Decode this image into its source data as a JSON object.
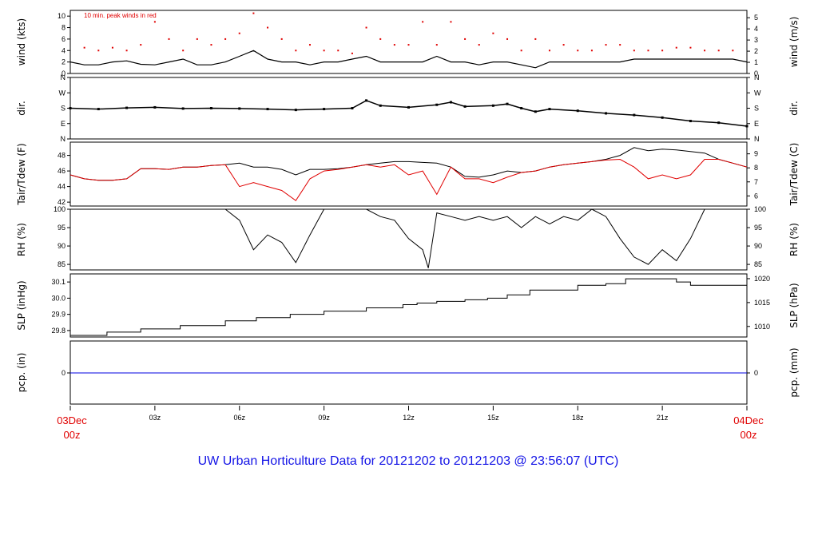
{
  "title": "UW Urban Horticulture Data for 20121202  to  20121203 @ 23:56:07  (UTC)",
  "colors": {
    "primary": "#000000",
    "secondary": "#e00000",
    "precip": "#0000e0",
    "title": "#1414e6"
  },
  "x_axis": {
    "start_label_top": "03Dec",
    "start_label_bottom": "00z",
    "end_label_top": "04Dec",
    "end_label_bottom": "00z",
    "hour_ticks": [
      {
        "hour": 3,
        "label": "03z"
      },
      {
        "hour": 6,
        "label": "06z"
      },
      {
        "hour": 9,
        "label": "09z"
      },
      {
        "hour": 12,
        "label": "12z"
      },
      {
        "hour": 15,
        "label": "15z"
      },
      {
        "hour": 18,
        "label": "18z"
      },
      {
        "hour": 21,
        "label": "21z"
      }
    ]
  },
  "chart_data": [
    {
      "type": "line",
      "panel": "wind",
      "ylabel": "wind (kts)",
      "ylabel_right": "wind (m/s)",
      "annotation": "10 min. peak winds in red",
      "ylim": [
        0,
        11
      ],
      "yticks": [
        0,
        2,
        4,
        6,
        8,
        10
      ],
      "right_ylim": [
        0,
        5.66
      ],
      "right_yticks": [
        0,
        1,
        2,
        3,
        4,
        5
      ],
      "series": [
        {
          "role": "mean",
          "x": [
            0,
            0.5,
            1,
            1.5,
            2,
            2.5,
            3,
            3.5,
            4,
            4.5,
            5,
            5.5,
            6,
            6.5,
            7,
            7.5,
            8,
            8.5,
            9,
            9.5,
            10,
            10.5,
            11,
            11.5,
            12,
            12.5,
            13,
            13.5,
            14,
            14.5,
            15,
            15.5,
            16,
            16.5,
            17,
            17.5,
            18,
            18.5,
            19,
            19.5,
            20,
            20.5,
            21,
            21.5,
            22,
            22.5,
            23,
            23.5,
            24
          ],
          "values": [
            2,
            1.5,
            1.5,
            2,
            2.2,
            1.6,
            1.5,
            2,
            2.5,
            1.5,
            1.5,
            2,
            3,
            4,
            2.5,
            2,
            2,
            1.5,
            2,
            2,
            2.5,
            3,
            2,
            2,
            2,
            2,
            3,
            2,
            2,
            1.5,
            2,
            2,
            1.5,
            1,
            2,
            2,
            2,
            2,
            2,
            2,
            2.5,
            2.5,
            2.5,
            2.5,
            2.5,
            2.5,
            2.5,
            2.5,
            2
          ]
        },
        {
          "role": "peak",
          "x": [
            0.5,
            1,
            1.5,
            2,
            2.5,
            3,
            3.5,
            4,
            4.5,
            5,
            5.5,
            6,
            6.5,
            7,
            7.5,
            8,
            8.5,
            9,
            9.5,
            10,
            10.5,
            11,
            11.5,
            12,
            12.5,
            13,
            13.5,
            14,
            14.5,
            15,
            15.5,
            16,
            16.5,
            17,
            17.5,
            18,
            18.5,
            19,
            19.5,
            20,
            20.5,
            21,
            21.5,
            22,
            22.5,
            23,
            23.5
          ],
          "values": [
            4.5,
            4,
            4.5,
            4,
            5,
            9,
            6,
            4,
            6,
            5,
            6,
            7,
            10.5,
            8,
            6,
            4,
            5,
            4,
            4,
            3.5,
            8,
            6,
            5,
            5,
            9,
            5,
            9,
            6,
            5,
            7,
            6,
            4,
            6,
            4,
            5,
            4,
            4,
            5,
            5,
            4,
            4,
            4,
            4.5,
            4.5,
            4,
            4,
            4
          ]
        }
      ]
    },
    {
      "type": "scatter",
      "panel": "dir",
      "ylabel": "dir.",
      "ylabel_right": "dir.",
      "categories": [
        "N",
        "E",
        "S",
        "W",
        "N"
      ],
      "ylim": [
        0,
        360
      ],
      "yticks": [
        0,
        90,
        180,
        270,
        360
      ],
      "x": [
        0,
        1,
        2,
        3,
        4,
        5,
        6,
        7,
        8,
        9,
        10,
        10.5,
        11,
        12,
        13,
        13.5,
        14,
        15,
        15.5,
        16,
        16.5,
        17,
        18,
        19,
        20,
        21,
        22,
        23,
        24
      ],
      "values": [
        180,
        175,
        182,
        185,
        178,
        180,
        178,
        175,
        170,
        175,
        180,
        225,
        195,
        185,
        200,
        215,
        190,
        195,
        205,
        180,
        160,
        175,
        165,
        150,
        140,
        125,
        105,
        95,
        75
      ]
    },
    {
      "type": "line",
      "panel": "temp",
      "ylabel": "Tair/Tdew (F)",
      "ylabel_right": "Tair/Tdew (C)",
      "ylim": [
        41.5,
        49.7
      ],
      "yticks": [
        42,
        44,
        46,
        48
      ],
      "right_yticks": [
        6,
        7,
        8,
        9
      ],
      "series": [
        {
          "role": "Tair",
          "x": [
            0,
            0.5,
            1,
            1.5,
            2,
            2.5,
            3,
            3.5,
            4,
            4.5,
            5,
            5.5,
            6,
            6.5,
            7,
            7.5,
            8,
            8.5,
            9,
            9.5,
            10,
            10.5,
            11,
            11.5,
            12,
            12.5,
            13,
            13.5,
            14,
            14.5,
            15,
            15.5,
            16,
            16.5,
            17,
            17.5,
            18,
            18.5,
            19,
            19.5,
            20,
            20.5,
            21,
            21.5,
            22,
            22.5,
            23,
            23.5,
            24
          ],
          "values": [
            45.5,
            45,
            44.8,
            44.8,
            45,
            46.3,
            46.3,
            46.2,
            46.5,
            46.5,
            46.7,
            46.8,
            47,
            46.5,
            46.5,
            46.2,
            45.5,
            46.2,
            46.2,
            46.3,
            46.5,
            46.8,
            47,
            47.2,
            47.2,
            47.1,
            47,
            46.5,
            45.3,
            45.2,
            45.5,
            46,
            45.8,
            46,
            46.5,
            46.8,
            47,
            47.2,
            47.5,
            48,
            49,
            48.6,
            48.8,
            48.7,
            48.5,
            48.3,
            47.5,
            47,
            46.5
          ]
        },
        {
          "role": "Tdew",
          "x": [
            0,
            0.5,
            1,
            1.5,
            2,
            2.5,
            3,
            3.5,
            4,
            4.5,
            5,
            5.5,
            6,
            6.5,
            7,
            7.5,
            8,
            8.5,
            9,
            9.5,
            10,
            10.5,
            11,
            11.5,
            12,
            12.5,
            13,
            13.5,
            14,
            14.5,
            15,
            15.5,
            16,
            16.5,
            17,
            17.5,
            18,
            18.5,
            19,
            19.5,
            20,
            20.5,
            21,
            21.5,
            22,
            22.5,
            23,
            23.5,
            24
          ],
          "values": [
            45.5,
            45,
            44.8,
            44.8,
            45,
            46.3,
            46.3,
            46.2,
            46.5,
            46.5,
            46.7,
            46.8,
            44,
            44.5,
            44,
            43.5,
            42.2,
            45,
            46,
            46.2,
            46.5,
            46.8,
            46.5,
            46.8,
            45.5,
            46,
            43,
            46.5,
            45,
            45,
            44.5,
            45.2,
            45.8,
            46,
            46.5,
            46.8,
            47,
            47.2,
            47.4,
            47.5,
            46.5,
            45,
            45.5,
            45,
            45.5,
            47.5,
            47.5,
            47,
            46.5
          ]
        }
      ]
    },
    {
      "type": "line",
      "panel": "rh",
      "ylabel": "RH (%)",
      "ylabel_right": "RH (%)",
      "ylim": [
        83.5,
        100
      ],
      "yticks": [
        85,
        90,
        95,
        100
      ],
      "right_yticks": [
        85,
        90,
        95,
        100
      ],
      "x": [
        5.5,
        6,
        6.5,
        7,
        7.5,
        8,
        8.5,
        9,
        10.5,
        11,
        11.5,
        12,
        12.5,
        12.7,
        13,
        13.5,
        14,
        14.5,
        15,
        15.5,
        16,
        16.5,
        17,
        17.5,
        18,
        18.5,
        19,
        19.5,
        20,
        20.5,
        21,
        21.5,
        22,
        22.5
      ],
      "values": [
        100,
        97,
        89,
        93,
        91,
        85.5,
        93,
        100,
        100,
        98,
        97,
        92,
        89,
        84,
        99,
        98,
        97,
        98,
        97,
        98,
        95,
        98,
        96,
        98,
        97,
        100,
        98,
        92,
        87,
        85,
        89,
        86,
        92,
        100
      ]
    },
    {
      "type": "line",
      "panel": "slp",
      "ylabel": "SLP (inHg)",
      "ylabel_right": "SLP (hPa)",
      "ylim": [
        29.76,
        30.15
      ],
      "yticks": [
        29.8,
        29.9,
        30.0,
        30.1
      ],
      "right_yticks": [
        1010,
        1015,
        1020
      ],
      "x": [
        0,
        1.3,
        2.5,
        3.9,
        5.5,
        6.6,
        7.8,
        9,
        10.5,
        11.8,
        12.3,
        13,
        14,
        14.8,
        15.5,
        16.3,
        18,
        19,
        19.7,
        20.2,
        21.5,
        22,
        24
      ],
      "values": [
        29.77,
        29.79,
        29.81,
        29.83,
        29.86,
        29.88,
        29.9,
        29.92,
        29.94,
        29.96,
        29.97,
        29.98,
        29.99,
        30.0,
        30.02,
        30.05,
        30.08,
        30.09,
        30.12,
        30.12,
        30.1,
        30.08,
        30.08
      ]
    },
    {
      "type": "line",
      "panel": "pcp",
      "ylabel": "pcp. (in)",
      "ylabel_right": "pcp. (mm)",
      "yticks": [
        0
      ],
      "right_yticks": [
        0
      ],
      "x": [
        0,
        24
      ],
      "values": [
        0,
        0
      ]
    }
  ]
}
